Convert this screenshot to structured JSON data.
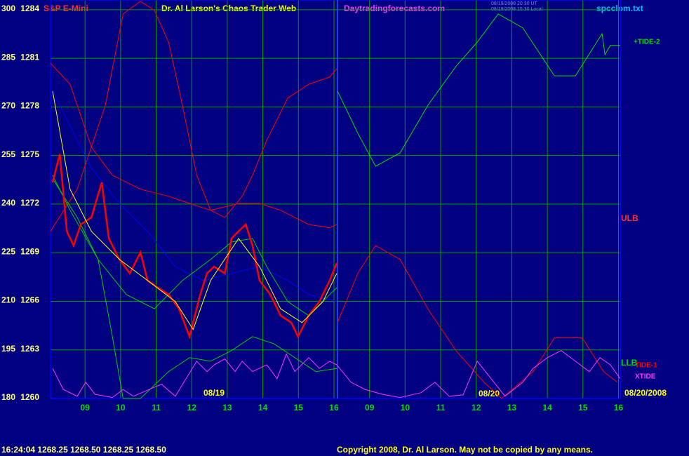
{
  "chart_data": {
    "type": "line",
    "title": "Dr. Al Larson's Chaos Trader Web",
    "instrument": "S&P E-Mini",
    "website": "Daytradingforecasts.com",
    "timestamps": [
      "08/19/2008 20:30 UT",
      "08/19/2008 15:30 Local"
    ],
    "file": "spcclom.txt",
    "dates": [
      "08/19",
      "08/20",
      "08/20/2008"
    ],
    "annotations": [
      "ULB",
      "LLB"
    ],
    "status": "16:24:04 1268.25 1268.50 1268.25 1268.50",
    "copyright": "Copyright 2008, Dr. Al Larson. May not be copied by any means.",
    "grid": true,
    "xlim": [
      -0.97,
      15.05
    ],
    "xticks": [
      {
        "value": 0,
        "label": "09"
      },
      {
        "value": 1,
        "label": "10"
      },
      {
        "value": 2,
        "label": "11"
      },
      {
        "value": 3,
        "label": "12"
      },
      {
        "value": 4,
        "label": "13"
      },
      {
        "value": 5,
        "label": "14"
      },
      {
        "value": 6,
        "label": "15"
      },
      {
        "value": 7,
        "label": "16"
      },
      {
        "value": 8,
        "label": "09"
      },
      {
        "value": 9,
        "label": "10"
      },
      {
        "value": 10,
        "label": "11"
      },
      {
        "value": 11,
        "label": "12"
      },
      {
        "value": 12,
        "label": "13"
      },
      {
        "value": 13,
        "label": "14"
      },
      {
        "value": 14,
        "label": "15"
      },
      {
        "value": 15,
        "label": "16"
      }
    ],
    "ylim": [
      180,
      303
    ],
    "yticks": [
      180,
      195,
      210,
      225,
      240,
      255,
      270,
      285,
      300
    ],
    "y2lim": [
      1260,
      1284.6
    ],
    "y2ticks": [
      1260,
      1263,
      1266,
      1269,
      1272,
      1275,
      1278,
      1281,
      1284
    ],
    "series": [
      {
        "color": "#ff0000",
        "x": [
          -0.97,
          -0.22,
          0.57,
          1.07,
          1.56,
          1.95,
          2.35,
          2.74,
          3.14,
          3.53,
          3.93,
          4.42,
          4.71,
          5.11,
          5.7,
          6.29,
          6.88,
          7.08
        ],
        "values": [
          231.6,
          244.6,
          270.5,
          298.7,
          302.6,
          299.8,
          290,
          270.5,
          248.9,
          238.1,
          235.9,
          242.4,
          248.9,
          259.7,
          272.7,
          277,
          279.2,
          281.8
        ]
      },
      {
        "color": "#ff0000",
        "x": [
          -0.97,
          -0.42,
          0.18,
          0.77,
          1.56,
          2.35,
          2.94,
          3.53,
          4.32,
          4.91,
          5.5,
          6.29,
          6.88,
          7.08
        ],
        "values": [
          283.5,
          277,
          257.6,
          248.9,
          244.6,
          242.4,
          240.2,
          238.1,
          240.2,
          240.2,
          238.1,
          233.7,
          232.7,
          233.7
        ]
      },
      {
        "color": "#0000ff",
        "x": [
          -0.91,
          -0.42,
          0.18,
          0.97,
          1.76,
          2.54,
          3.33,
          4.12,
          4.91,
          5.7,
          6.29,
          7.08
        ],
        "values": [
          274.9,
          264.1,
          251.1,
          240.2,
          231.6,
          220.7,
          216.4,
          218.6,
          220.7,
          216.4,
          212.1,
          209.9
        ]
      },
      {
        "color": "#00d000",
        "x": [
          -0.91,
          -0.42,
          0.37,
          1.16,
          1.95,
          2.74,
          3.53,
          4.12,
          4.71,
          5.11,
          5.7,
          6.29,
          6.88,
          7.08
        ],
        "values": [
          248.9,
          238.1,
          222.9,
          212.1,
          207.7,
          216.4,
          222.9,
          228.3,
          229.4,
          220.7,
          209.9,
          205.6,
          212.1,
          214.2
        ]
      },
      {
        "color": "#00d000",
        "x": [
          -0.91,
          -0.22,
          0.37,
          0.77,
          1.07,
          1.56,
          2.35,
          2.94,
          3.53,
          4.12,
          4.71,
          5.31,
          5.9,
          6.49,
          7.08
        ],
        "values": [
          247.8,
          235.9,
          222.9,
          199.1,
          180,
          180,
          188.3,
          192.6,
          191.5,
          194.8,
          199.1,
          196.9,
          192.6,
          188.3,
          189.3
        ]
      },
      {
        "color": "#ff0000",
        "x": [
          -0.91,
          -0.71,
          -0.51,
          -0.32,
          -0.12,
          0.18,
          0.47,
          0.67,
          0.97,
          1.26,
          1.56,
          1.76,
          2.05,
          2.35,
          2.64,
          2.94,
          3.24,
          3.43,
          3.63,
          3.93,
          4.12,
          4.32,
          4.52,
          4.71,
          4.91,
          5.21,
          5.5,
          5.8,
          5.99,
          6.29,
          6.59,
          6.88,
          7.08
        ],
        "values": [
          246.7,
          255.4,
          231.6,
          227.2,
          233.7,
          235.9,
          246.7,
          229.4,
          222.9,
          218.6,
          225.1,
          216.4,
          214.2,
          212.1,
          207.7,
          199.1,
          212.1,
          218.6,
          220.7,
          218.6,
          229.4,
          231.6,
          233.7,
          227.2,
          216.4,
          212.1,
          205.6,
          203.4,
          199.1,
          205.6,
          209.9,
          216.4,
          221.8
        ]
      },
      {
        "color": "#ffff00",
        "x": [
          -0.91,
          -0.42,
          0.18,
          0.97,
          1.76,
          2.54,
          3.04,
          3.53,
          4.32,
          4.91,
          5.5,
          6.1,
          6.69,
          7.08
        ],
        "values": [
          274.9,
          244.6,
          231.6,
          222.9,
          216.4,
          209.9,
          201.3,
          216.4,
          229.4,
          220.7,
          207.7,
          203.4,
          209.9,
          218.6
        ]
      },
      {
        "name": "+TIDE-2",
        "color": "#00e000",
        "x": [
          7.1,
          7.67,
          8.17,
          8.86,
          9.64,
          10.43,
          11.03,
          11.62,
          12.31,
          13.2,
          13.79,
          14.54,
          14.62,
          14.77,
          15.05
        ],
        "values": [
          274.9,
          261.9,
          251.7,
          255.8,
          270.5,
          282.5,
          290,
          298.7,
          294.4,
          279.6,
          279.6,
          292.6,
          286.1,
          289,
          289
        ]
      },
      {
        "name": "TIDE-1",
        "color": "#ff0000",
        "x": [
          7.1,
          7.67,
          8.17,
          8.86,
          9.64,
          10.43,
          11.22,
          11.72,
          12.6,
          13.2,
          13.98,
          14.58,
          14.97
        ],
        "values": [
          203.4,
          218.6,
          227.2,
          222.9,
          207.7,
          194.8,
          185,
          180,
          188.3,
          198.7,
          198.7,
          188.3,
          185
        ]
      },
      {
        "name": "XTIDE",
        "color": "#ff33ff",
        "x": [
          -0.91,
          -0.61,
          -0.22,
          0.02,
          0.28,
          0.77,
          1.07,
          1.36,
          2.15,
          2.54,
          3.14,
          3.43,
          3.63,
          3.93,
          4.22,
          4.42,
          4.71,
          5.11,
          5.4,
          5.66,
          5.9,
          6.29,
          6.59,
          6.88,
          7.08,
          7.48,
          7.87,
          8.36,
          8.86,
          9.45,
          9.84,
          10.24,
          10.63,
          11.03,
          11.42,
          11.81,
          12.31,
          12.6,
          13,
          13.39,
          13.79,
          14.18,
          14.48,
          14.77,
          15.05
        ],
        "values": [
          189.3,
          182.8,
          180.7,
          185,
          181.3,
          180.3,
          182.8,
          180.7,
          184.4,
          180.7,
          191.5,
          188.3,
          190.4,
          192.2,
          188.3,
          191.5,
          188.3,
          190.4,
          186.1,
          193.7,
          188.3,
          192.6,
          189.3,
          191.5,
          190.4,
          185,
          182.8,
          181.3,
          180.3,
          181.8,
          185,
          180.7,
          181.1,
          191.5,
          186.1,
          180.7,
          185,
          189.3,
          192.6,
          194.8,
          191.5,
          188.3,
          192.6,
          190.4,
          186.1
        ]
      }
    ]
  }
}
